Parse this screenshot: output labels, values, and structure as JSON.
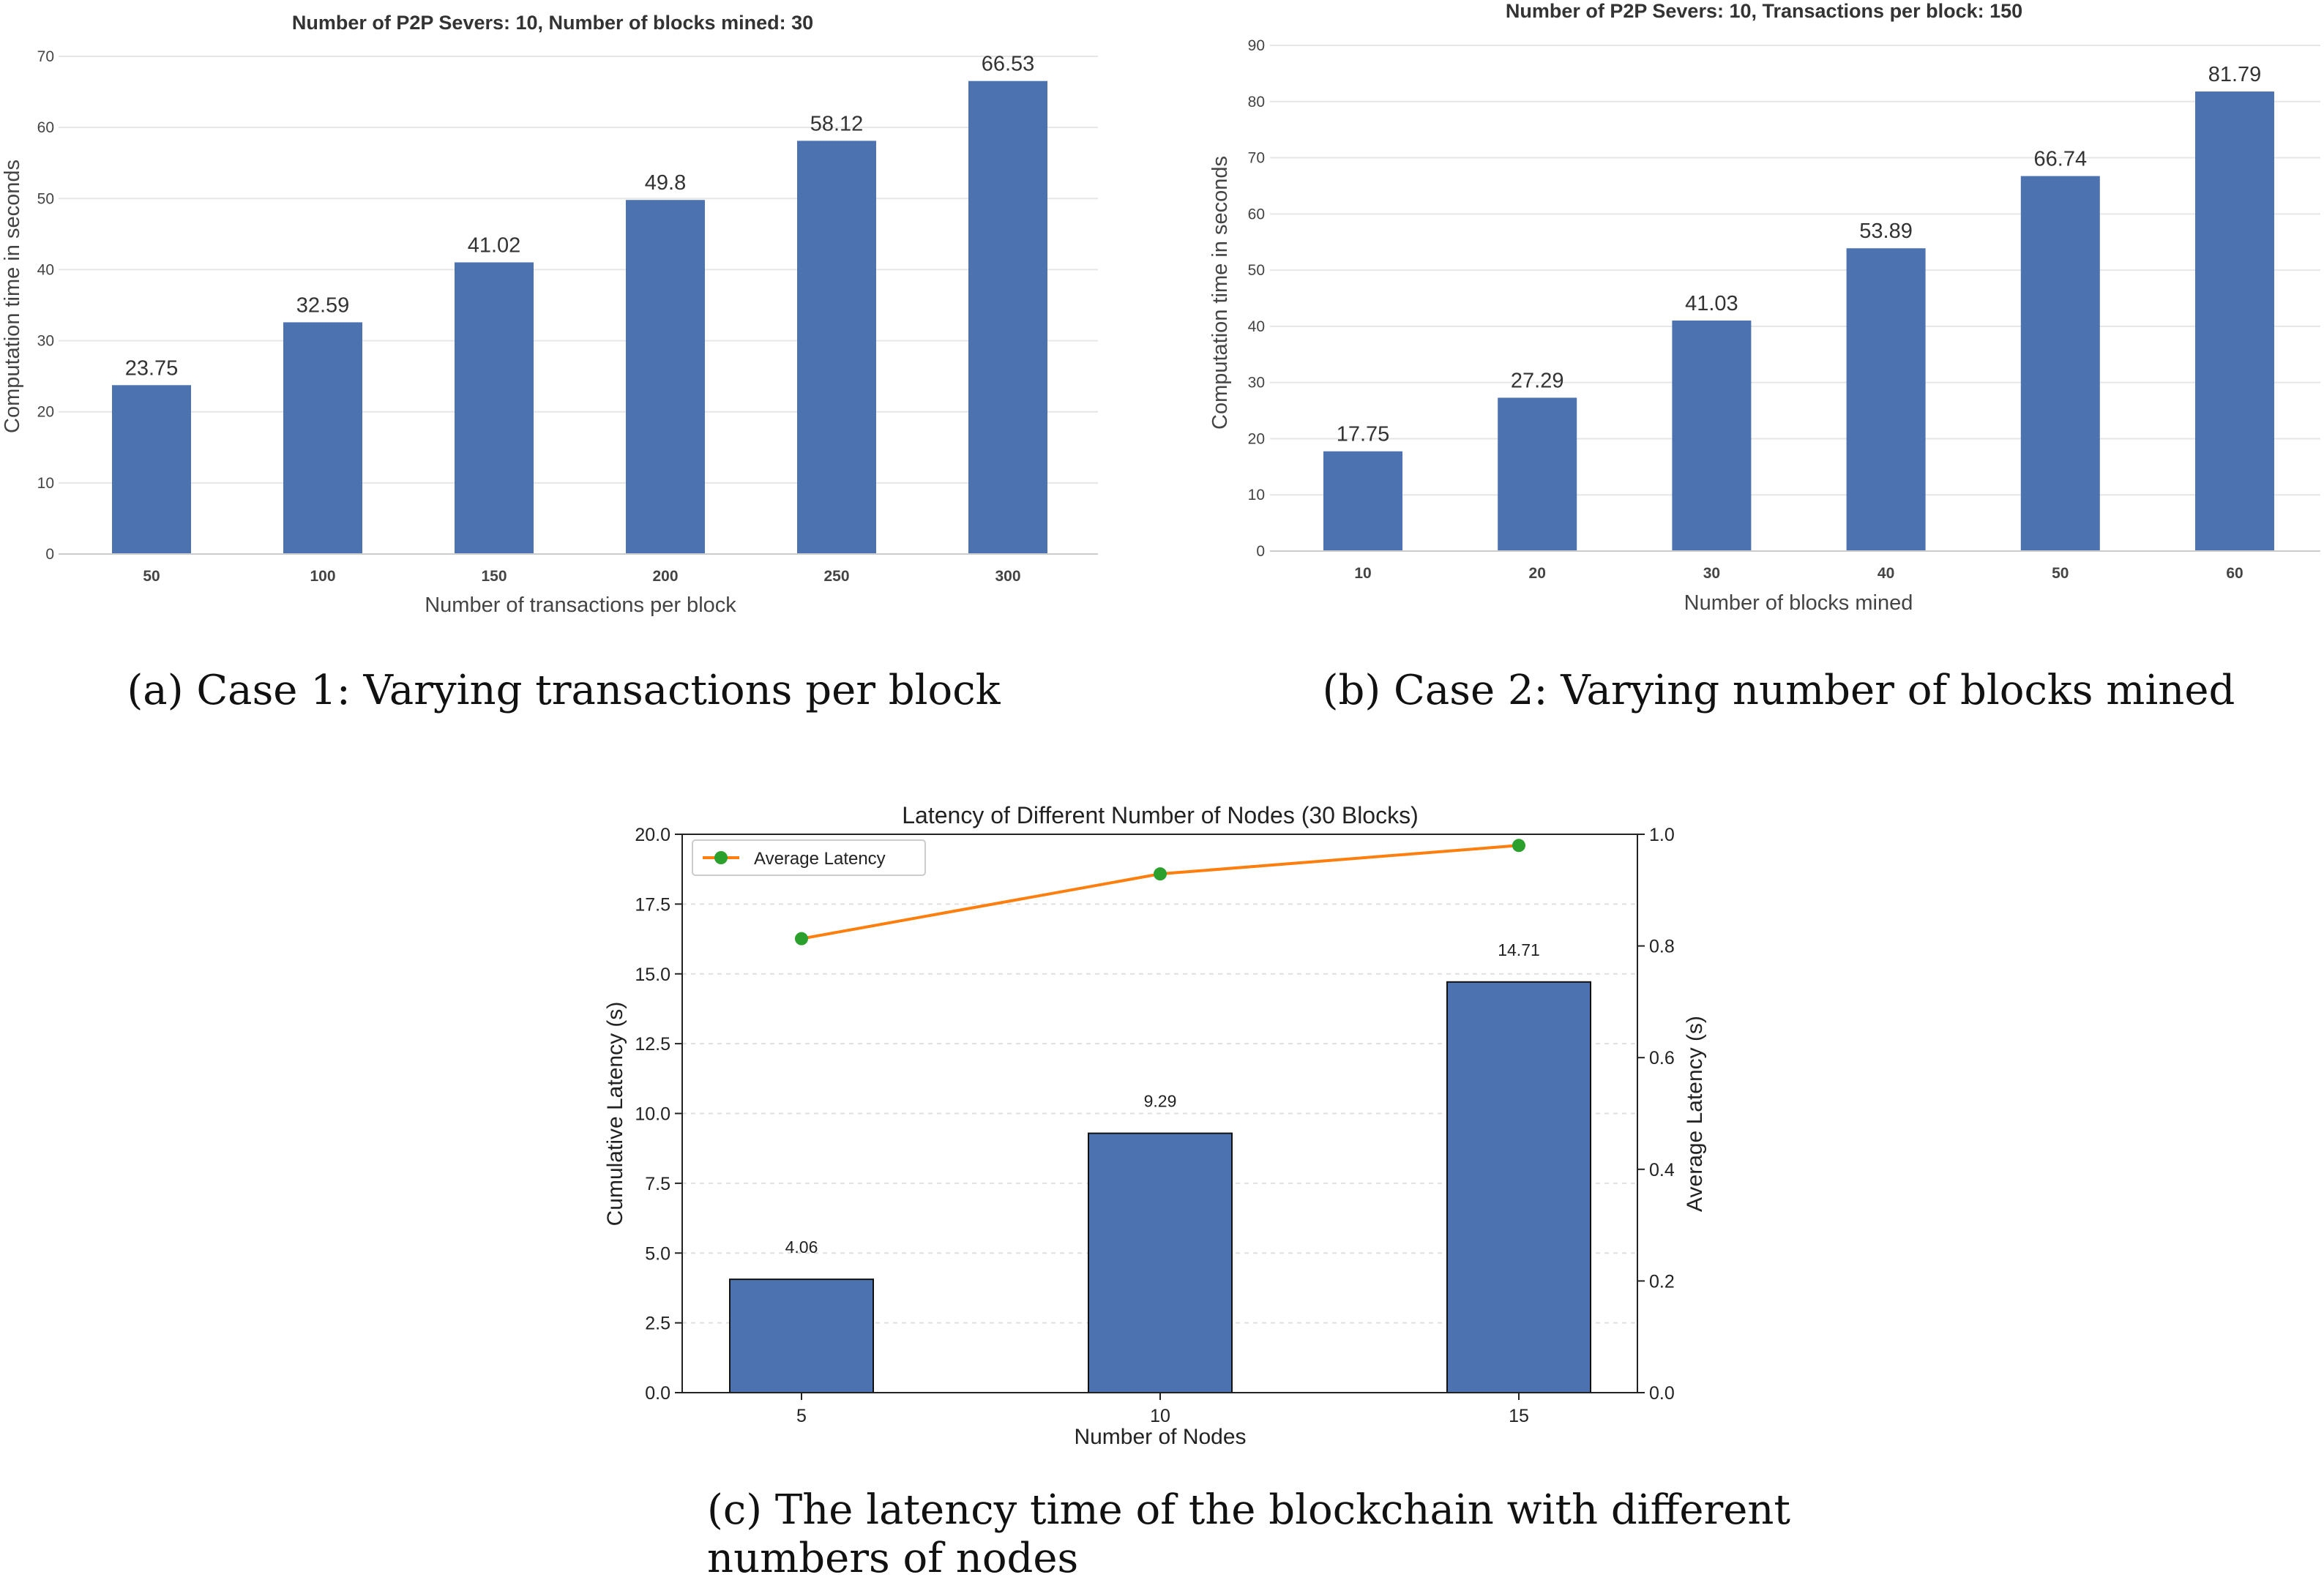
{
  "chart_data": [
    {
      "type": "bar",
      "title": "Number of P2P Severs: 10, Number of blocks mined: 30",
      "xlabel": "Number of transactions per block",
      "ylabel": "Computation time in seconds",
      "categories": [
        "50",
        "100",
        "150",
        "200",
        "250",
        "300"
      ],
      "values": [
        23.75,
        32.59,
        41.02,
        49.8,
        58.12,
        66.53
      ],
      "data_labels": [
        "23.75",
        "32.59",
        "41.02",
        "49.8",
        "58.12",
        "66.53"
      ],
      "ylim": [
        0,
        70
      ],
      "yticks": [
        0,
        10,
        20,
        30,
        40,
        50,
        60,
        70
      ],
      "grid": true,
      "color": "#4c72b0",
      "caption": "(a)  Case 1: Varying transactions per block"
    },
    {
      "type": "bar",
      "title": "Number of P2P Severs: 10, Transactions per block: 150",
      "xlabel": "Number of blocks mined",
      "ylabel": "Computation time in seconds",
      "categories": [
        "10",
        "20",
        "30",
        "40",
        "50",
        "60"
      ],
      "values": [
        17.75,
        27.29,
        41.03,
        53.89,
        66.74,
        81.79
      ],
      "data_labels": [
        "17.75",
        "27.29",
        "41.03",
        "53.89",
        "66.74",
        "81.79"
      ],
      "ylim": [
        0,
        90
      ],
      "yticks": [
        0,
        10,
        20,
        30,
        40,
        50,
        60,
        70,
        80,
        90
      ],
      "grid": true,
      "color": "#4c72b0",
      "caption": "(b)  Case 2: Varying number of blocks mined"
    },
    {
      "type": "bar",
      "title": "Latency of Different Number of Nodes (30 Blocks)",
      "xlabel": "Number of Nodes",
      "ylabel": "Cumulative Latency (s)",
      "y2label": "Average Latency (s)",
      "categories": [
        "5",
        "10",
        "15"
      ],
      "values": [
        4.06,
        9.29,
        14.71
      ],
      "data_labels": [
        "4.06",
        "9.29",
        "14.71"
      ],
      "ylim": [
        0,
        20
      ],
      "yticks": [
        "0.0",
        "2.5",
        "5.0",
        "7.5",
        "10.0",
        "12.5",
        "15.0",
        "17.5",
        "20.0"
      ],
      "y2lim": [
        0,
        1
      ],
      "y2ticks": [
        "0.0",
        "0.2",
        "0.4",
        "0.6",
        "0.8",
        "1.0"
      ],
      "series": [
        {
          "name": "Average Latency",
          "type": "line",
          "axis": "right",
          "values": [
            0.813,
            0.929,
            0.98
          ],
          "color": "#ff7f0e",
          "marker_color": "#2ca02c"
        }
      ],
      "legend_position": "top-left",
      "grid": true,
      "color": "#4c72b0",
      "caption_line1": "(c)  The latency time of the blockchain with different",
      "caption_line2": "numbers of nodes"
    }
  ]
}
